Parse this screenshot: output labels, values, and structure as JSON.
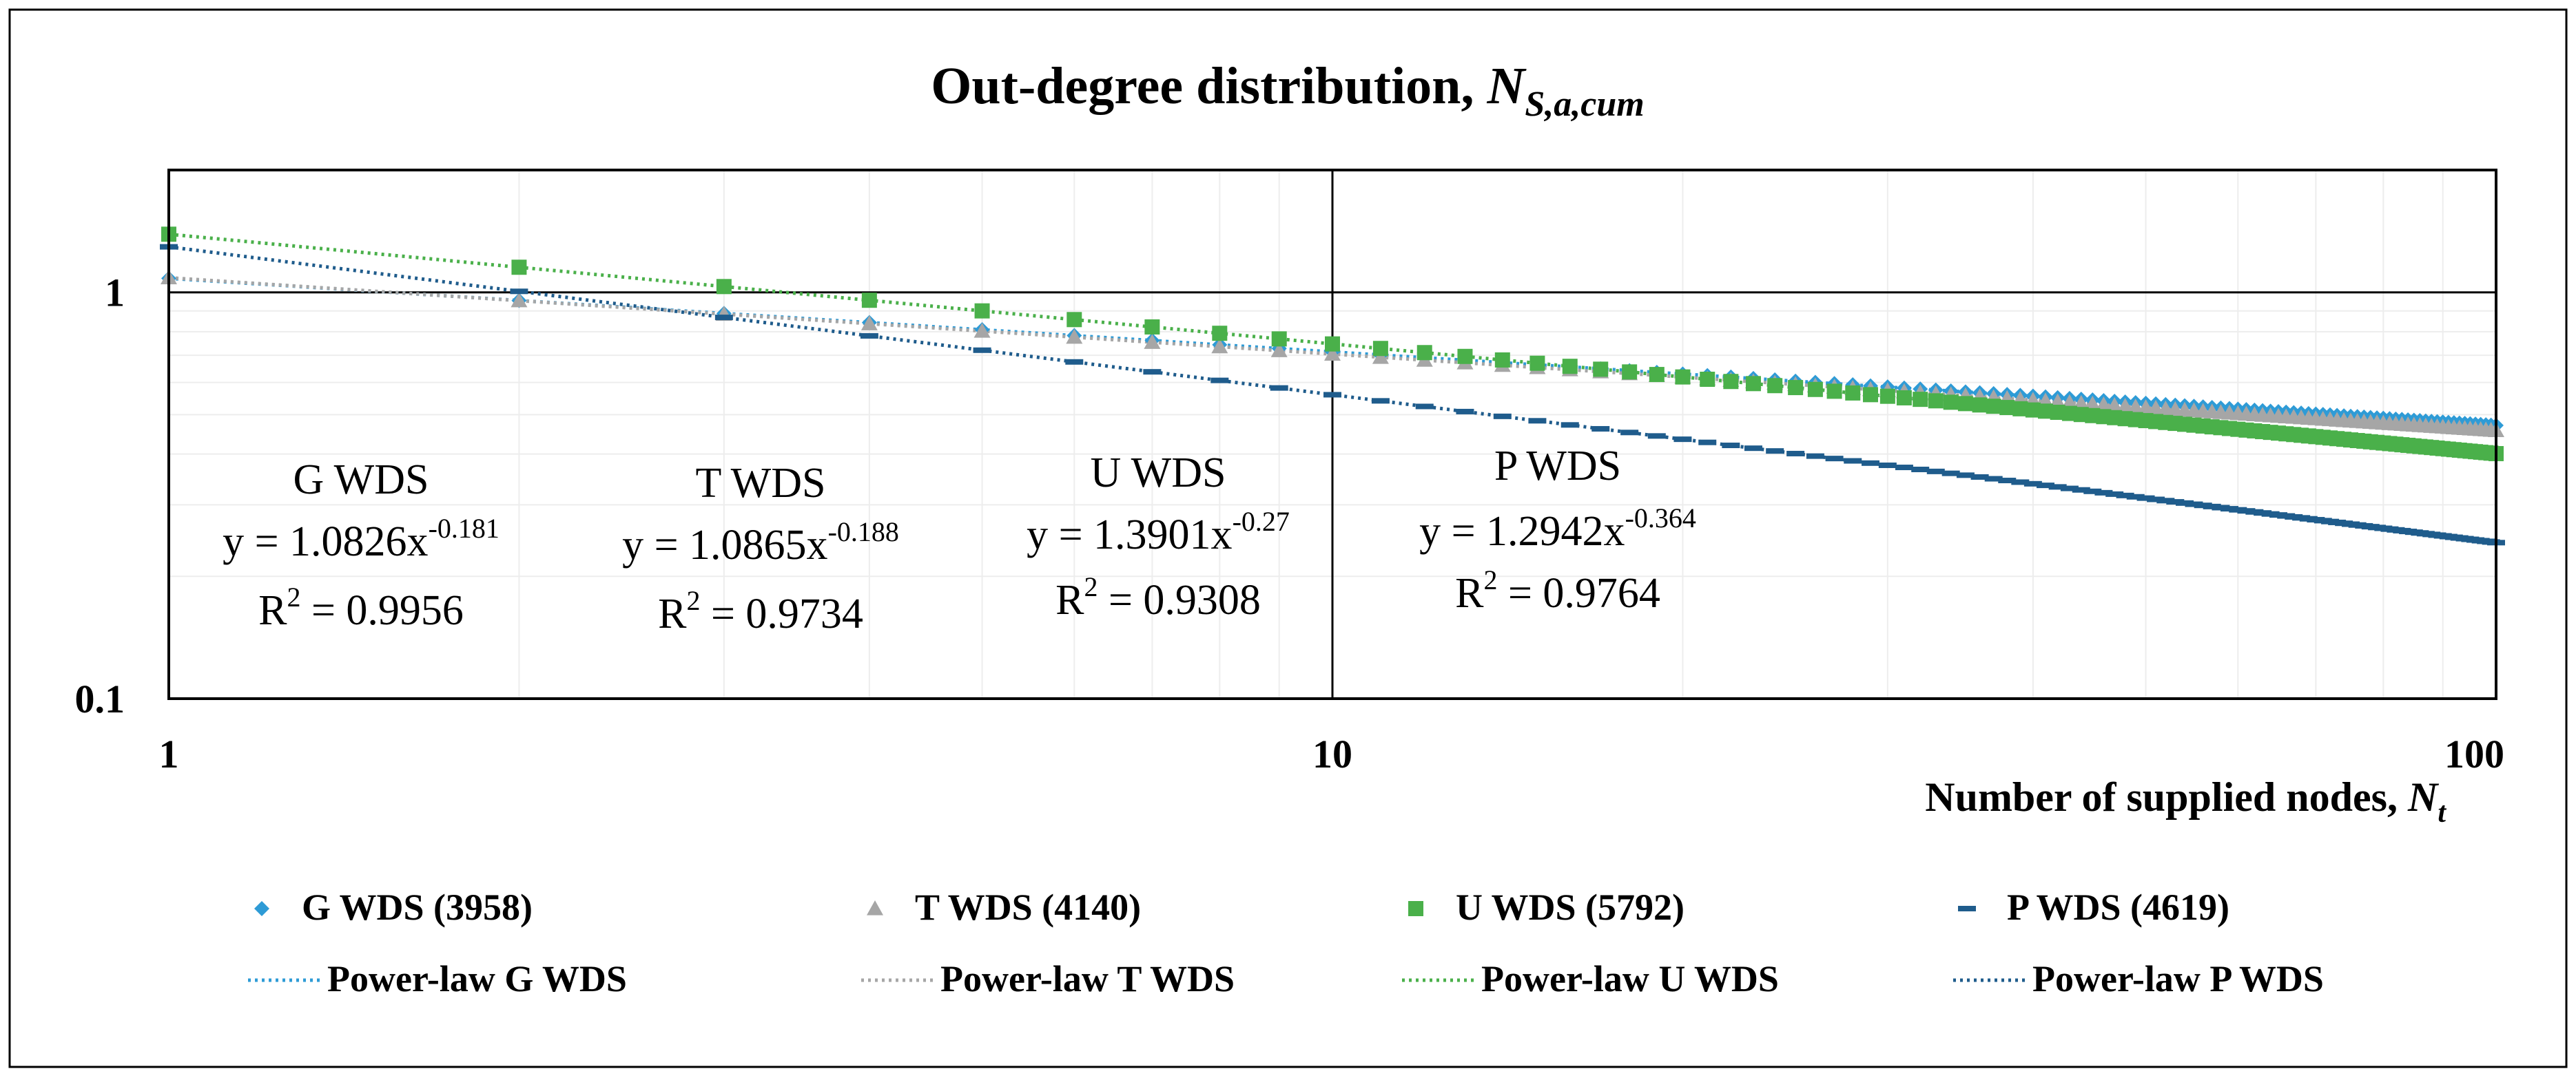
{
  "chart_data": {
    "type": "scatter",
    "title": "Out-degree distribution, ",
    "title_symbol": "N",
    "title_subscript": "S,a,cum",
    "xlabel": "Number of supplied nodes, ",
    "xlabel_symbol": "N",
    "xlabel_subscript": "t",
    "ylabel": "",
    "xscale": "log",
    "yscale": "log",
    "xlim": [
      1,
      100
    ],
    "ylim": [
      0.1,
      2
    ],
    "x_ticks": [
      1,
      10,
      100
    ],
    "x_tick_labels": [
      "1",
      "10",
      "100"
    ],
    "y_ticks": [
      0.1,
      1
    ],
    "y_tick_labels": [
      "0.1",
      "1"
    ],
    "grid": true,
    "legend_position": "bottom",
    "series": [
      {
        "name": "G WDS (3958)",
        "marker": "diamond",
        "color": "#2e9bd6",
        "n": 100,
        "fit": {
          "a": 1.0826,
          "b": -0.181
        }
      },
      {
        "name": "T WDS (4140)",
        "marker": "triangle",
        "color": "#a6a6a6",
        "n": 100,
        "fit": {
          "a": 1.0865,
          "b": -0.188
        }
      },
      {
        "name": "U WDS (5792)",
        "marker": "square",
        "color": "#4ab04a",
        "n": 100,
        "fit": {
          "a": 1.3901,
          "b": -0.27
        }
      },
      {
        "name": "P WDS (4619)",
        "marker": "dash",
        "color": "#1f5c8c",
        "n": 100,
        "fit": {
          "a": 1.2942,
          "b": -0.364
        }
      }
    ],
    "trendlines": [
      {
        "name": "Power-law G WDS",
        "color": "#2e9bd6",
        "a": 1.0826,
        "b": -0.181
      },
      {
        "name": "Power-law T WDS",
        "color": "#a6a6a6",
        "a": 1.0865,
        "b": -0.188
      },
      {
        "name": "Power-law U WDS",
        "color": "#4ab04a",
        "a": 1.3901,
        "b": -0.27
      },
      {
        "name": "Power-law P WDS",
        "color": "#1f5c8c",
        "a": 1.2942,
        "b": -0.364
      }
    ],
    "annotations": [
      {
        "name": "G WDS",
        "eq_prefix": "y = 1.0826x",
        "eq_exp": "-0.181",
        "r2_prefix": "R",
        "r2_sup": "2",
        "r2_value": " = 0.9956"
      },
      {
        "name": "T WDS",
        "eq_prefix": "y = 1.0865x",
        "eq_exp": "-0.188",
        "r2_prefix": "R",
        "r2_sup": "2",
        "r2_value": " = 0.9734"
      },
      {
        "name": "U WDS",
        "eq_prefix": "y = 1.3901x",
        "eq_exp": "-0.27",
        "r2_prefix": "R",
        "r2_sup": "2",
        "r2_value": " = 0.9308"
      },
      {
        "name": "P WDS",
        "eq_prefix": "y = 1.2942x",
        "eq_exp": "-0.364",
        "r2_prefix": "R",
        "r2_sup": "2",
        "r2_value": " = 0.9764"
      }
    ]
  }
}
